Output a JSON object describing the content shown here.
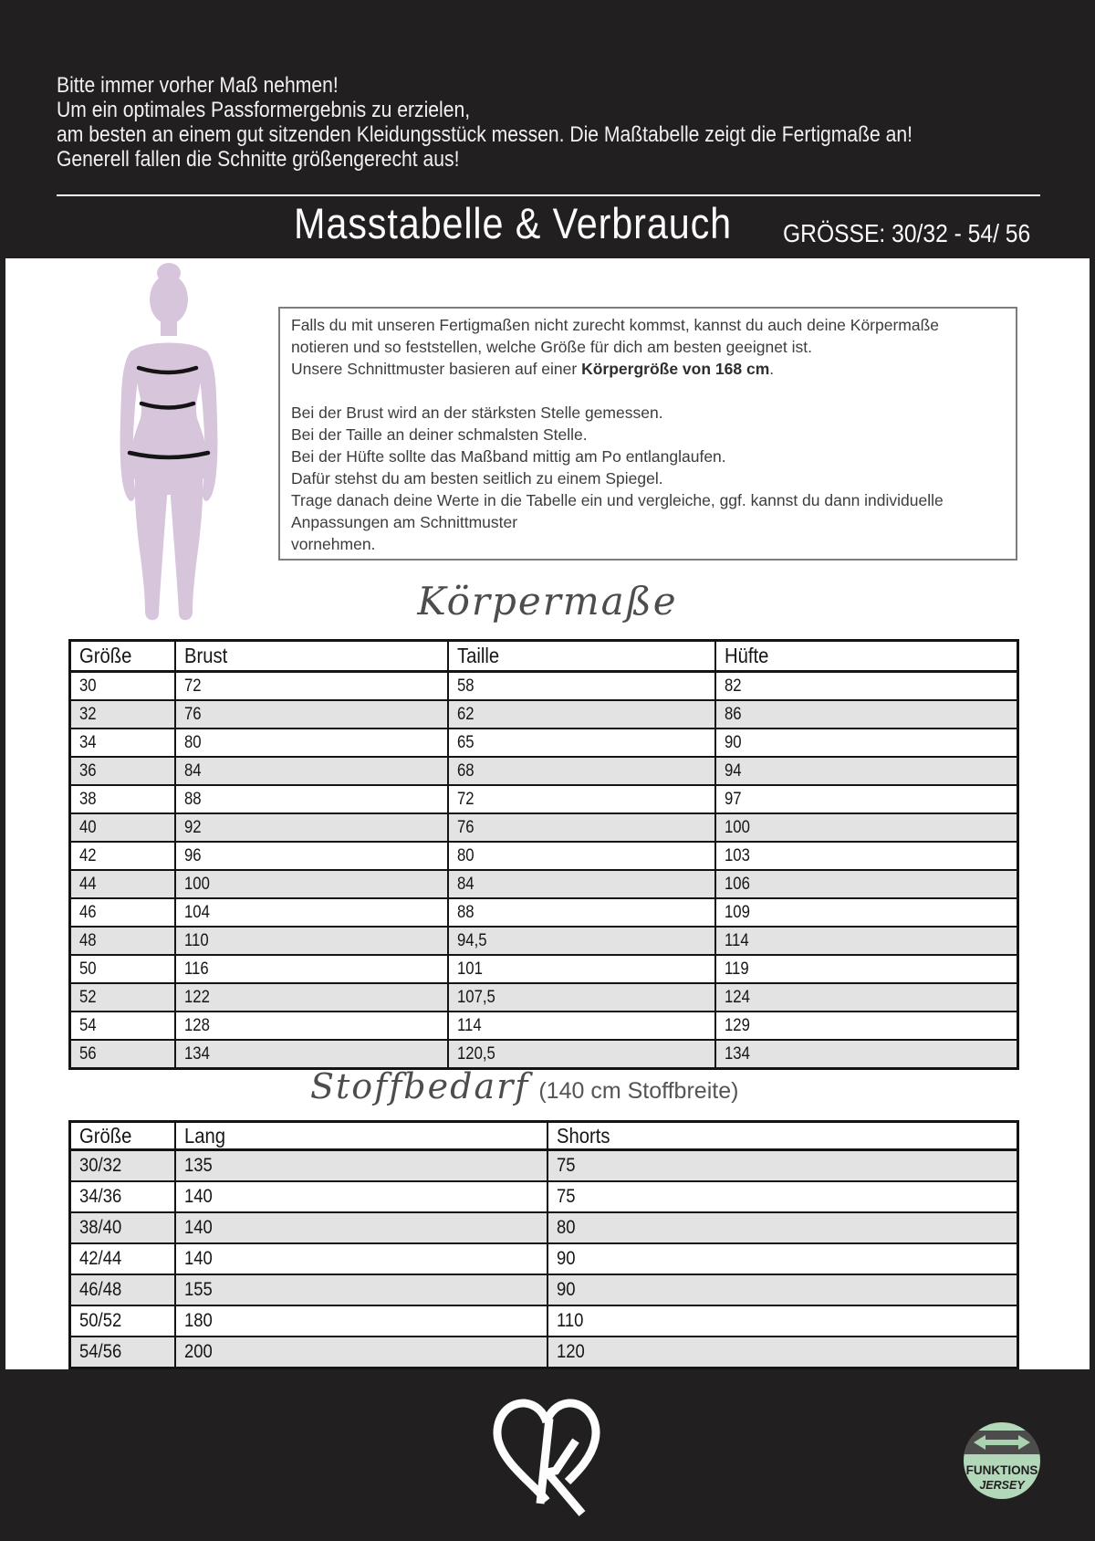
{
  "header": {
    "intro_lines": [
      "Bitte immer vorher Maß nehmen!",
      "Um ein optimales Passformergebnis zu erzielen,",
      "am besten an einem gut sitzenden Kleidungsstück messen. Die Maßtabelle zeigt die Fertigmaße an!",
      "Generell fallen die Schnitte größengerecht aus!"
    ],
    "title": "Masstabelle & Verbrauch",
    "size_range": "GRÖSSE: 30/32 - 54/ 56"
  },
  "info_box": {
    "lines": [
      {
        "text": "Falls du mit unseren Fertigmaßen nicht zurecht kommst, kannst du auch deine Körpermaße"
      },
      {
        "text": "notieren und so feststellen, welche Größe für dich am besten geeignet ist."
      },
      {
        "text": "Unsere Schnittmuster basieren auf einer ",
        "bold": "Körpergröße von 168 cm",
        "after": "."
      },
      {
        "text": ""
      },
      {
        "text": "Bei der Brust wird an der stärksten Stelle gemessen."
      },
      {
        "text": "Bei der Taille an deiner schmalsten Stelle."
      },
      {
        "text": "Bei der Hüfte sollte das Maßband mittig am Po entlanglaufen."
      },
      {
        "text": "Dafür stehst du am besten seitlich zu einem Spiegel."
      },
      {
        "text": "Trage danach deine Werte in die Tabelle ein und vergleiche, ggf. kannst du dann individuelle"
      },
      {
        "text": "Anpassungen am Schnittmuster"
      },
      {
        "text": "vornehmen."
      }
    ]
  },
  "body_measurements": {
    "heading": "Körpermaße",
    "columns": [
      "Größe",
      "Brust",
      "Taille",
      "Hüfte"
    ],
    "rows": [
      [
        "30",
        "72",
        "58",
        "82"
      ],
      [
        "32",
        "76",
        "62",
        "86"
      ],
      [
        "34",
        "80",
        "65",
        "90"
      ],
      [
        "36",
        "84",
        "68",
        "94"
      ],
      [
        "38",
        "88",
        "72",
        "97"
      ],
      [
        "40",
        "92",
        "76",
        "100"
      ],
      [
        "42",
        "96",
        "80",
        "103"
      ],
      [
        "44",
        "100",
        "84",
        "106"
      ],
      [
        "46",
        "104",
        "88",
        "109"
      ],
      [
        "48",
        "110",
        "94,5",
        "114"
      ],
      [
        "50",
        "116",
        "101",
        "119"
      ],
      [
        "52",
        "122",
        "107,5",
        "124"
      ],
      [
        "54",
        "128",
        "114",
        "129"
      ],
      [
        "56",
        "134",
        "120,5",
        "134"
      ]
    ]
  },
  "fabric_requirements": {
    "heading_script": "Stoffbedarf",
    "heading_note": "(140 cm Stoffbreite)",
    "columns": [
      "Größe",
      "Lang",
      "Shorts"
    ],
    "rows": [
      [
        "30/32",
        "135",
        "75"
      ],
      [
        "34/36",
        "140",
        "75"
      ],
      [
        "38/40",
        "140",
        "80"
      ],
      [
        "42/44",
        "140",
        "90"
      ],
      [
        "46/48",
        "155",
        "90"
      ],
      [
        "50/52",
        "180",
        "110"
      ],
      [
        "54/56",
        "200",
        "120"
      ]
    ]
  },
  "footer": {
    "badge": {
      "top_label": "FUNKTIONS",
      "bottom_label": "JERSEY"
    }
  },
  "colors": {
    "header_bg": "#211f1f",
    "row_alt": "#e3e3e3",
    "silhouette": "#d7c5dc",
    "badge_green": "#b2d8b9",
    "badge_band": "#4d4c4c",
    "heading_gray": "#4d4d4d"
  }
}
